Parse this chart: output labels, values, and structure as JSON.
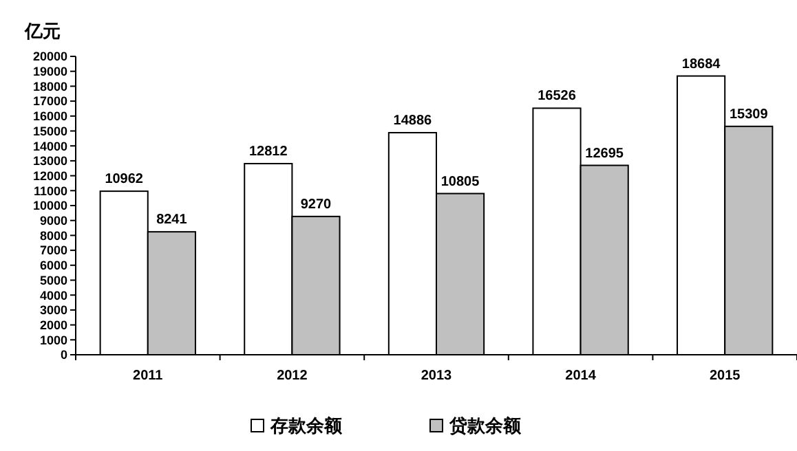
{
  "chart_data": {
    "type": "bar",
    "ylabel": "亿元",
    "categories": [
      "2011",
      "2012",
      "2013",
      "2014",
      "2015"
    ],
    "series": [
      {
        "name": "存款余额",
        "color": "#ffffff",
        "values": [
          10962,
          12812,
          14886,
          16526,
          18684
        ]
      },
      {
        "name": "贷款余额",
        "color": "#c0c0c0",
        "values": [
          8241,
          9270,
          10805,
          12695,
          15309
        ]
      }
    ],
    "ylim": [
      0,
      20000
    ],
    "yticks": [
      0,
      1000,
      2000,
      3000,
      4000,
      5000,
      6000,
      7000,
      8000,
      9000,
      10000,
      11000,
      12000,
      13000,
      14000,
      15000,
      16000,
      17000,
      18000,
      19000,
      20000
    ],
    "data_labels": true,
    "legend": "bottom",
    "grid": false
  }
}
